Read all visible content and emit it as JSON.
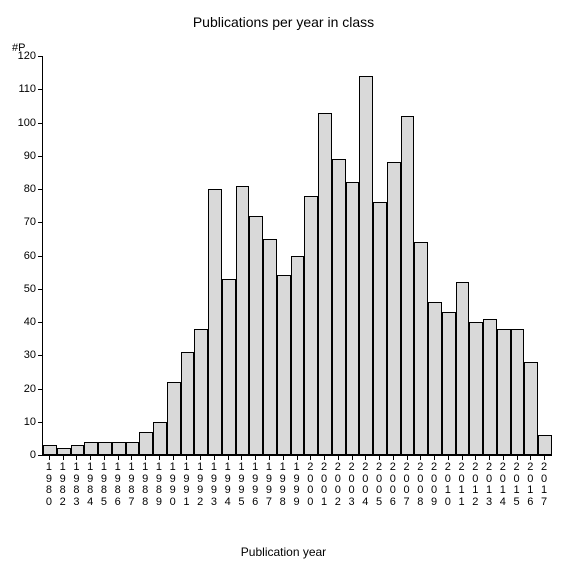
{
  "chart": {
    "type": "bar",
    "title": "Publications per year in class",
    "title_fontsize": 14,
    "y_axis_label": "#P",
    "x_axis_title": "Publication year",
    "x_axis_title_fontsize": 12,
    "label_fontsize": 11,
    "background_color": "#ffffff",
    "bar_fill": "#d9d9d9",
    "bar_border": "#000000",
    "axis_color": "#000000",
    "text_color": "#000000",
    "ylim": [
      0,
      120
    ],
    "ytick_step": 10,
    "y_ticks": [
      0,
      10,
      20,
      30,
      40,
      50,
      60,
      70,
      80,
      90,
      100,
      110,
      120
    ],
    "bar_width_ratio": 1.0,
    "categories": [
      "1980",
      "1982",
      "1983",
      "1984",
      "1985",
      "1986",
      "1987",
      "1988",
      "1989",
      "1990",
      "1991",
      "1992",
      "1993",
      "1994",
      "1995",
      "1996",
      "1997",
      "1998",
      "1999",
      "2000",
      "2001",
      "2002",
      "2003",
      "2004",
      "2005",
      "2006",
      "2007",
      "2008",
      "2009",
      "2010",
      "2011",
      "2012",
      "2013",
      "2014",
      "2015",
      "2016",
      "2017"
    ],
    "values": [
      3,
      2,
      3,
      4,
      4,
      4,
      4,
      7,
      10,
      22,
      31,
      38,
      80,
      53,
      81,
      72,
      65,
      54,
      60,
      78,
      103,
      89,
      82,
      114,
      76,
      88,
      102,
      64,
      46,
      43,
      52,
      40,
      41,
      38,
      38,
      28,
      6
    ]
  }
}
